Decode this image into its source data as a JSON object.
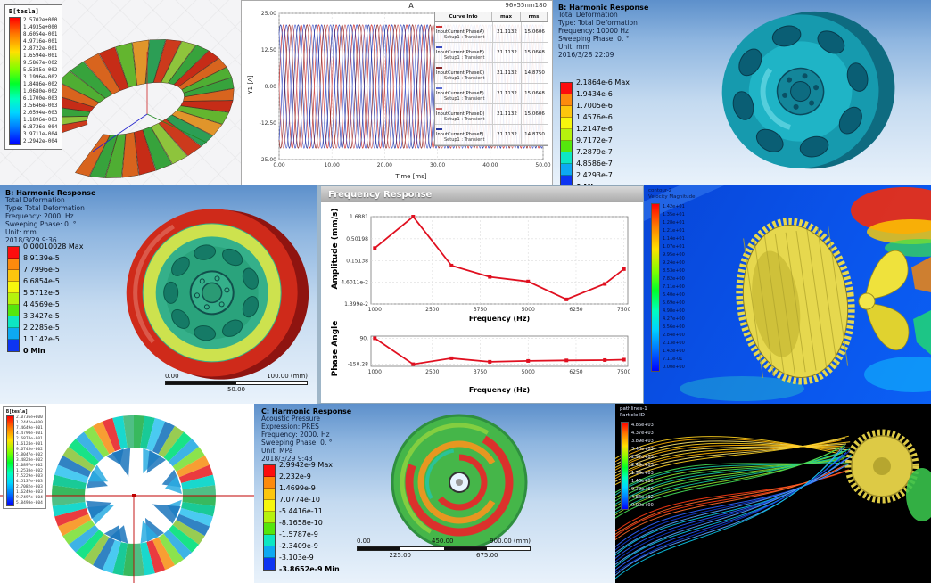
{
  "colors": {
    "ansys_bands": [
      "#fc0d0d",
      "#fc8a0d",
      "#fcc60d",
      "#f6f60d",
      "#b6f20d",
      "#55e60d",
      "#0de6c3",
      "#0da9f2",
      "#0d35f2"
    ],
    "fluent_background": "#0a52e6",
    "frequency_line": "#e01020",
    "crosshair_red": "#c00000"
  },
  "panels": {
    "torus": {
      "legend_title": "B[tesla]",
      "legend_values": [
        "2.5702e+000",
        "1.4935e+000",
        "8.6054e-001",
        "4.9716e-001",
        "2.8722e-001",
        "1.6594e-001",
        "9.5867e-002",
        "5.5385e-002",
        "3.1996e-002",
        "1.8486e-002",
        "1.0680e-002",
        "6.1700e-003",
        "3.5646e-003",
        "2.0594e-003",
        "1.1896e-003",
        "6.8726e-004",
        "3.9711e-004",
        "2.2942e-004"
      ]
    },
    "currents": {
      "title": "A",
      "corner_label": "96v55nm180",
      "xlabel": "Time [ms]",
      "ylabel": "Y1 [A]",
      "table": {
        "headers": [
          "Curve Info",
          "max",
          "rms"
        ],
        "rows": [
          {
            "curve": "InputCurrent(PhaseA)",
            "setup": "Setup1 : Transient",
            "max": "21.1132",
            "rms": "15.0606",
            "color": "#cc3333"
          },
          {
            "curve": "InputCurrent(PhaseB)",
            "setup": "Setup1 : Transient",
            "max": "21.1132",
            "rms": "15.0668",
            "color": "#3b4cc0"
          },
          {
            "curve": "InputCurrent(PhaseC)",
            "setup": "Setup1 : Transient",
            "max": "21.1132",
            "rms": "14.8750",
            "color": "#8b2a2a"
          },
          {
            "curve": "InputCurrent(PhaseE)",
            "setup": "Setup1 : Transient",
            "max": "21.1132",
            "rms": "15.0668",
            "color": "#5b6cd0"
          },
          {
            "curve": "InputCurrent(PhaseD)",
            "setup": "Setup1 : Transient",
            "max": "21.1132",
            "rms": "15.0606",
            "color": "#d06a6a"
          },
          {
            "curve": "InputCurrent(PhaseF)",
            "setup": "Setup1 : Transient",
            "max": "21.1132",
            "rms": "14.8750",
            "color": "#27379f"
          }
        ]
      }
    },
    "wheel_10000": {
      "info": [
        "B: Harmonic Response",
        "Total Deformation",
        "Type: Total Deformation",
        "Frequency: 10000 Hz",
        "Sweeping Phase: 0. °",
        "Unit: mm",
        "2016/3/28 22:09"
      ],
      "legend": [
        "2.1864e-6 Max",
        "1.9434e-6",
        "1.7005e-6",
        "1.4576e-6",
        "1.2147e-6",
        "9.7172e-7",
        "7.2879e-7",
        "4.8586e-7",
        "2.4293e-7",
        "0 Min"
      ]
    },
    "wheel_2000": {
      "info": [
        "B: Harmonic Response",
        "Total Deformation",
        "Type: Total Deformation",
        "Frequency: 2000. Hz",
        "Sweeping Phase: 0. °",
        "Unit: mm",
        "2018/3/29 9:36"
      ],
      "legend": [
        "0.00010028 Max",
        "8.9139e-5",
        "7.7996e-5",
        "6.6854e-5",
        "5.5712e-5",
        "4.4569e-5",
        "3.3427e-5",
        "2.2285e-5",
        "1.1142e-5",
        "0 Min"
      ],
      "scale": {
        "left": "0.00",
        "right": "100.00 (mm)",
        "center": "50.00"
      }
    },
    "freq_window": {
      "title": "Frequency Response"
    },
    "cfd_contour": {
      "header": [
        "contour-2",
        "Velocity Magnitude"
      ],
      "legend": [
        "1.42e+01",
        "1.35e+01",
        "1.28e+01",
        "1.21e+01",
        "1.14e+01",
        "1.07e+01",
        "9.95e+00",
        "9.24e+00",
        "8.53e+00",
        "7.82e+00",
        "7.11e+00",
        "6.40e+00",
        "5.69e+00",
        "4.98e+00",
        "4.27e+00",
        "3.56e+00",
        "2.84e+00",
        "2.13e+00",
        "1.42e+00",
        "7.11e-01",
        "0.00e+00"
      ]
    },
    "ring": {
      "legend_title": "B[tesla]",
      "legend_values": [
        "2.0736e+000",
        "1.2442e+000",
        "7.4649e-001",
        "4.4790e-001",
        "2.6874e-001",
        "1.6124e-001",
        "9.6745e-002",
        "5.8047e-002",
        "3.4828e-002",
        "2.0897e-002",
        "1.2538e-002",
        "7.5229e-003",
        "4.5137e-003",
        "2.7082e-003",
        "1.6249e-003",
        "9.7497e-004",
        "5.8498e-004"
      ]
    },
    "acoustic": {
      "info": [
        "C: Harmonic Response",
        "Acoustic Pressure",
        "Expression: PRES",
        "Frequency: 2000. Hz",
        "Sweeping Phase: 0. °",
        "Unit: MPa",
        "2018/3/29 9:43"
      ],
      "legend": [
        "2.9942e-9 Max",
        "2.232e-9",
        "1.4699e-9",
        "7.0774e-10",
        "-5.4416e-11",
        "-8.1658e-10",
        "-1.5787e-9",
        "-2.3409e-9",
        "-3.103e-9",
        "-3.8652e-9 Min"
      ],
      "scale": {
        "left": "0.00",
        "mid": "450.00",
        "right": "900.00 (mm)",
        "q1": "225.00",
        "q3": "675.00"
      }
    },
    "streamlines": {
      "header": [
        "pathlines-1",
        "Particle ID"
      ],
      "legend": [
        "4.86e+03",
        "4.37e+03",
        "3.89e+03",
        "3.40e+03",
        "2.92e+03",
        "2.43e+03",
        "1.94e+03",
        "1.46e+03",
        "9.72e+02",
        "4.86e+02",
        "0.00e+00"
      ]
    }
  },
  "chart_data": [
    {
      "id": "phase_currents",
      "type": "line",
      "title": "A",
      "xlabel": "Time [ms]",
      "ylabel": "Y1 [A]",
      "xlim": [
        0,
        50
      ],
      "ylim": [
        -25,
        25
      ],
      "xticks": [
        0,
        10,
        20,
        30,
        40,
        50
      ],
      "xtick_labels": [
        "0.00",
        "10.00",
        "20.00",
        "30.00",
        "40.00",
        "50.00"
      ],
      "yticks": [
        25,
        12.5,
        0,
        -12.5,
        -25
      ],
      "ytick_labels": [
        "25.00",
        "12.50",
        "0.00",
        "-12.50",
        "-25.00"
      ],
      "series": [
        {
          "name": "InputCurrent(PhaseA)",
          "amplitude": 21.1132,
          "period_ms": 3.3333,
          "phase_deg": 0,
          "color": "#cc3333"
        },
        {
          "name": "InputCurrent(PhaseB)",
          "amplitude": 21.1132,
          "period_ms": 3.3333,
          "phase_deg": -60,
          "color": "#3b4cc0"
        },
        {
          "name": "InputCurrent(PhaseC)",
          "amplitude": 21.1132,
          "period_ms": 3.3333,
          "phase_deg": -120,
          "color": "#8b2a2a"
        },
        {
          "name": "InputCurrent(PhaseE)",
          "amplitude": 21.1132,
          "period_ms": 3.3333,
          "phase_deg": -240,
          "color": "#5b6cd0"
        },
        {
          "name": "InputCurrent(PhaseD)",
          "amplitude": 21.1132,
          "period_ms": 3.3333,
          "phase_deg": -180,
          "color": "#d06a6a"
        },
        {
          "name": "InputCurrent(PhaseF)",
          "amplitude": 21.1132,
          "period_ms": 3.3333,
          "phase_deg": -300,
          "color": "#27379f"
        }
      ],
      "legend_position": "table overlay right",
      "grid": true
    },
    {
      "id": "amplitude_response",
      "type": "line",
      "ylabel": "Amplitude (mm/s)",
      "xlabel": "Frequency (Hz)",
      "yscale": "log",
      "ylim": [
        0.01399,
        1.6881
      ],
      "yticks": [
        1.6881,
        0.50198,
        0.15138,
        0.046011,
        0.01399
      ],
      "ytick_labels": [
        "1.6881",
        "0.50198",
        "0.15138",
        "4.6011e-2",
        "1.399e-2"
      ],
      "xlim": [
        900,
        7600
      ],
      "xticks": [
        1000,
        2500,
        3750,
        5000,
        6250,
        7500
      ],
      "xtick_labels": [
        "1000",
        "2500",
        "3750",
        "5000",
        "6250",
        "7500"
      ],
      "x": [
        1000,
        2000,
        3000,
        4000,
        5000,
        6000,
        7000,
        7500
      ],
      "y": [
        0.3,
        1.6881,
        0.115,
        0.062,
        0.048,
        0.018,
        0.042,
        0.095
      ],
      "color": "#e01020",
      "grid": true
    },
    {
      "id": "phase_response",
      "type": "line",
      "ylabel": "Phase Angle",
      "xlabel": "Frequency (Hz)",
      "ylim": [
        -170,
        110
      ],
      "yticks": [
        90,
        -150.28
      ],
      "ytick_labels": [
        "90.",
        "-150.28"
      ],
      "xlim": [
        900,
        7600
      ],
      "xticks": [
        1000,
        2500,
        3750,
        5000,
        6250,
        7500
      ],
      "xtick_labels": [
        "1000",
        "2500",
        "3750",
        "5000",
        "6250",
        "7500"
      ],
      "x": [
        1000,
        2000,
        3000,
        4000,
        5000,
        6000,
        7000,
        7500
      ],
      "y": [
        90,
        -150.28,
        -95,
        -128,
        -120,
        -115,
        -112,
        -108
      ],
      "color": "#e01020",
      "grid": true
    }
  ]
}
